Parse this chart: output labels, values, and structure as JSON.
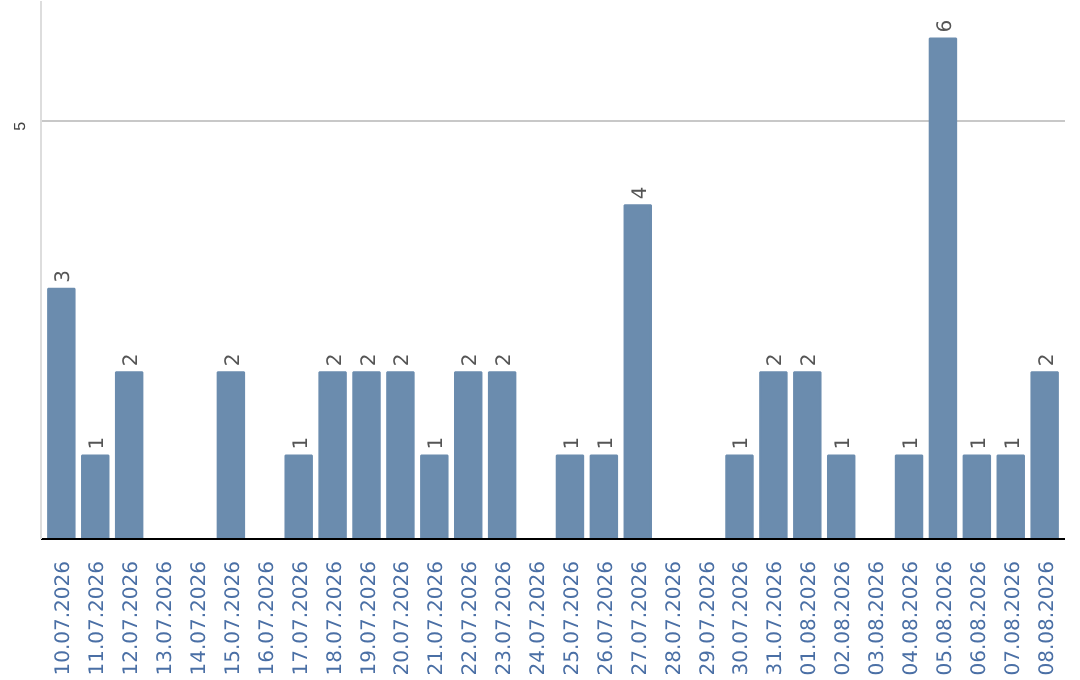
{
  "chart_data": {
    "type": "bar",
    "categories": [
      "10.07.2026",
      "11.07.2026",
      "12.07.2026",
      "13.07.2026",
      "14.07.2026",
      "15.07.2026",
      "16.07.2026",
      "17.07.2026",
      "18.07.2026",
      "19.07.2026",
      "20.07.2026",
      "21.07.2026",
      "22.07.2026",
      "23.07.2026",
      "24.07.2026",
      "25.07.2026",
      "26.07.2026",
      "27.07.2026",
      "28.07.2026",
      "29.07.2026",
      "30.07.2026",
      "31.07.2026",
      "01.08.2026",
      "02.08.2026",
      "03.08.2026",
      "04.08.2026",
      "05.08.2026",
      "06.08.2026",
      "07.08.2026",
      "08.08.2026"
    ],
    "values": [
      3,
      1,
      2,
      0,
      0,
      2,
      0,
      1,
      2,
      2,
      2,
      1,
      2,
      2,
      0,
      1,
      1,
      4,
      0,
      0,
      1,
      2,
      2,
      1,
      0,
      1,
      6,
      1,
      1,
      2
    ],
    "value_labels": [
      "3",
      "1",
      "2",
      null,
      null,
      "2",
      null,
      "1",
      "2",
      "2",
      "2",
      "1",
      "2",
      "2",
      null,
      "1",
      "1",
      "4",
      null,
      null,
      "1",
      "2",
      "2",
      "1",
      null,
      "1",
      "6",
      "1",
      "1",
      "2"
    ],
    "color": "#6b8cae",
    "ylim": [
      0,
      6.45
    ],
    "yticks": [
      {
        "value": 0,
        "label": null
      },
      5
    ],
    "grid": "y"
  }
}
